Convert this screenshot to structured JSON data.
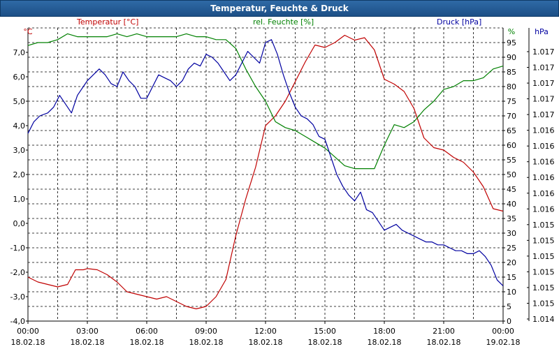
{
  "window": {
    "title": "Temperatur, Feuchte & Druck"
  },
  "chart_data": {
    "type": "line",
    "title": "Temperatur, Feuchte & Druck",
    "x_labels": [
      {
        "time": "00:00",
        "date": "18.02.18"
      },
      {
        "time": "03:00",
        "date": "18.02.18"
      },
      {
        "time": "06:00",
        "date": "18.02.18"
      },
      {
        "time": "09:00",
        "date": "18.02.18"
      },
      {
        "time": "12:00",
        "date": "18.02.18"
      },
      {
        "time": "15:00",
        "date": "18.02.18"
      },
      {
        "time": "18:00",
        "date": "18.02.18"
      },
      {
        "time": "21:00",
        "date": "18.02.18"
      },
      {
        "time": "00:00",
        "date": "19.02.18"
      }
    ],
    "x_range_hours": [
      0,
      24
    ],
    "axes": {
      "temperature": {
        "label": "Temperatur [°C]",
        "unit": "°C",
        "range": [
          -4.0,
          8.0
        ],
        "ticks": [
          "-4,0",
          "-3,0",
          "-2,0",
          "-1,0",
          "0,0",
          "1,0",
          "2,0",
          "3,0",
          "4,0",
          "5,0",
          "6,0",
          "7,0"
        ],
        "tick_values": [
          -4,
          -3,
          -2,
          -1,
          0,
          1,
          2,
          3,
          4,
          5,
          6,
          7
        ],
        "color": "#c00000"
      },
      "humidity": {
        "label": "rel. Feuchte [%]",
        "unit": "%",
        "range": [
          0,
          100
        ],
        "ticks": [
          "0",
          "5",
          "10",
          "15",
          "20",
          "25",
          "30",
          "35",
          "40",
          "45",
          "50",
          "55",
          "60",
          "65",
          "70",
          "75",
          "80",
          "85",
          "90",
          "95"
        ],
        "tick_values": [
          0,
          5,
          10,
          15,
          20,
          25,
          30,
          35,
          40,
          45,
          50,
          55,
          60,
          65,
          70,
          75,
          80,
          85,
          90,
          95
        ],
        "color": "#008000"
      },
      "pressure": {
        "label": "Druck [hPa]",
        "unit": "hPa",
        "color": "#0000a0",
        "ticks": [
          "1.014",
          "1.015",
          "1.015",
          "1.015",
          "1.015",
          "1.015",
          "1.015",
          "1.016",
          "1.016",
          "1.016",
          "1.016",
          "1.016",
          "1.016",
          "1.017",
          "1.017",
          "1.017",
          "1.017",
          "1.017"
        ]
      }
    },
    "series": [
      {
        "name": "Temperatur",
        "axis": "temperature",
        "color": "#c00000",
        "x": [
          0,
          0.5,
          1,
          1.5,
          2,
          2.4,
          2.8,
          3,
          3.5,
          4,
          4.5,
          5,
          5.5,
          6,
          6.5,
          7,
          7.5,
          8,
          8.5,
          9,
          9.5,
          10,
          10.5,
          11,
          11.5,
          12,
          12.5,
          13,
          13.5,
          14,
          14.5,
          15,
          15.5,
          16,
          16.5,
          17,
          17.5,
          18,
          18.5,
          19,
          19.5,
          20,
          20.5,
          21,
          21.5,
          22,
          22.5,
          23,
          23.5,
          24
        ],
        "values": [
          -2.2,
          -2.4,
          -2.5,
          -2.6,
          -2.5,
          -1.9,
          -1.9,
          -1.85,
          -1.9,
          -2.1,
          -2.4,
          -2.8,
          -2.9,
          -3.0,
          -3.1,
          -3.0,
          -3.2,
          -3.4,
          -3.5,
          -3.4,
          -3.0,
          -2.3,
          -0.5,
          1.0,
          2.3,
          4.0,
          4.4,
          5.0,
          5.8,
          6.6,
          7.3,
          7.2,
          7.4,
          7.7,
          7.5,
          7.6,
          7.1,
          5.9,
          5.7,
          5.4,
          4.7,
          3.5,
          3.1,
          3.0,
          2.7,
          2.5,
          2.1,
          1.5,
          0.6,
          0.5
        ]
      },
      {
        "name": "rel. Feuchte",
        "axis": "humidity",
        "color": "#008000",
        "x": [
          0,
          0.5,
          1,
          1.5,
          2,
          2.5,
          3,
          3.5,
          4,
          4.5,
          5,
          5.5,
          6,
          6.5,
          7,
          7.5,
          8,
          8.5,
          9,
          9.5,
          10,
          10.5,
          11,
          11.5,
          12,
          12.5,
          13,
          13.5,
          14,
          14.5,
          15,
          15.5,
          16,
          16.5,
          17,
          17.5,
          18,
          18.5,
          19,
          19.5,
          20,
          20.5,
          21,
          21.5,
          22,
          22.5,
          23,
          23.5,
          24
        ],
        "values": [
          94,
          95,
          95,
          96,
          98,
          97,
          97,
          97,
          97,
          98,
          97,
          98,
          97,
          97,
          97,
          97,
          98,
          97,
          97,
          96,
          96,
          93,
          86,
          80,
          75,
          68,
          66,
          65,
          63,
          61,
          59,
          56,
          53,
          52,
          52,
          52,
          60,
          67,
          66,
          68,
          72,
          75,
          79,
          80,
          82,
          82,
          83,
          86,
          87
        ]
      },
      {
        "name": "Druck",
        "axis": "pressure",
        "color": "#0000a0",
        "x": [
          0,
          0.3,
          0.6,
          1,
          1.3,
          1.6,
          1.9,
          2.2,
          2.5,
          2.8,
          3,
          3.3,
          3.6,
          3.9,
          4.2,
          4.5,
          4.8,
          5.1,
          5.4,
          5.7,
          6,
          6.3,
          6.6,
          6.9,
          7.2,
          7.5,
          7.8,
          8.1,
          8.4,
          8.7,
          9,
          9.3,
          9.6,
          9.9,
          10.2,
          10.5,
          10.8,
          11.1,
          11.4,
          11.7,
          12,
          12.3,
          12.6,
          12.9,
          13.2,
          13.5,
          13.8,
          14.1,
          14.4,
          14.7,
          15,
          15.3,
          15.6,
          15.9,
          16.2,
          16.5,
          16.8,
          17.1,
          17.4,
          17.7,
          18,
          18.3,
          18.6,
          18.9,
          19.2,
          19.5,
          19.8,
          20.1,
          20.4,
          20.7,
          21,
          21.3,
          21.6,
          21.9,
          22.2,
          22.5,
          22.8,
          23.1,
          23.4,
          23.7,
          24
        ],
        "values": [
          64,
          68,
          70,
          71,
          73,
          77,
          74,
          71,
          77,
          80,
          82,
          84,
          86,
          84,
          81,
          80,
          85,
          82,
          80,
          76,
          76,
          80,
          84,
          83,
          82,
          80,
          82,
          86,
          88,
          87,
          91,
          90,
          88,
          85,
          82,
          84,
          88,
          92,
          90,
          88,
          95,
          96,
          91,
          84,
          78,
          73,
          70,
          69,
          67,
          63,
          62,
          56,
          50,
          46,
          43,
          41,
          44,
          38,
          37,
          34,
          31,
          32,
          33,
          31,
          30,
          29,
          28,
          27,
          27,
          26,
          26,
          25,
          24,
          24,
          23,
          23,
          24,
          22,
          19,
          14,
          12
        ]
      }
    ]
  }
}
